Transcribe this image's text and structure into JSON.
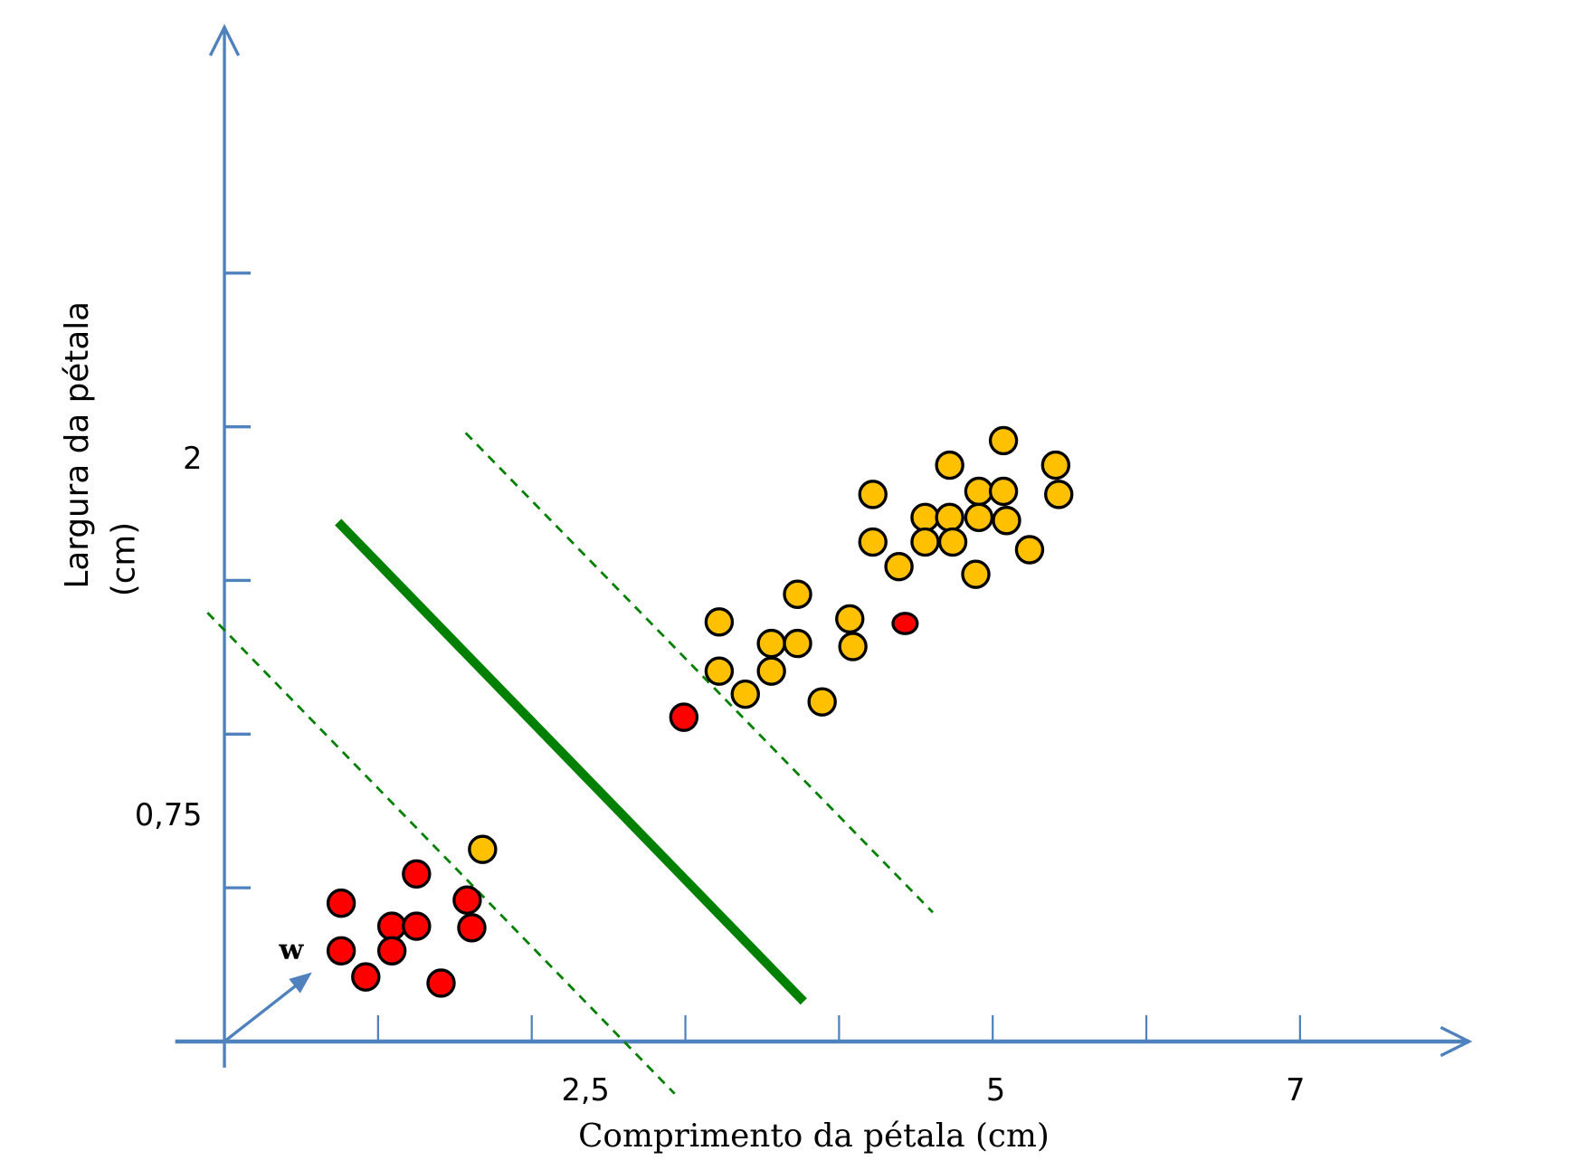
{
  "chart_data": {
    "type": "scatter",
    "title": "",
    "xlabel": "Comprimento da pétala (cm)",
    "ylabel_lines": [
      "Largura da pétala",
      "(cm)"
    ],
    "x_tick_labels": [
      {
        "label": "2,5",
        "at": 2.35
      },
      {
        "label": "5",
        "at": 5.02
      },
      {
        "label": "7",
        "at": 6.97
      }
    ],
    "y_tick_labels": [
      {
        "label": "2",
        "at": 3.8
      },
      {
        "label": "0,75",
        "at": 1.48
      }
    ],
    "x_ticks": [
      1,
      2,
      3,
      4,
      5,
      6,
      7
    ],
    "y_ticks": [
      1,
      2,
      3,
      4,
      5
    ],
    "xlim": [
      -0.32,
      8.1
    ],
    "ylim": [
      -0.17,
      6.6
    ],
    "grid": false,
    "colors": {
      "axis": "#4f81bd",
      "class_a": "#ff0000",
      "class_b": "#ffc000",
      "boundary": "#008000"
    },
    "series": [
      {
        "name": "class_a",
        "color": "#ff0000",
        "points": [
          [
            0.76,
            0.9
          ],
          [
            1.09,
            0.75
          ],
          [
            1.25,
            0.75
          ],
          [
            1.25,
            1.09
          ],
          [
            1.58,
            0.92
          ],
          [
            1.61,
            0.74
          ],
          [
            0.76,
            0.59
          ],
          [
            1.09,
            0.59
          ],
          [
            0.92,
            0.42
          ],
          [
            1.41,
            0.38
          ],
          [
            2.99,
            2.11
          ],
          [
            4.43,
            2.72
          ]
        ]
      },
      {
        "name": "class_b",
        "color": "#ffc000",
        "points": [
          [
            1.68,
            1.25
          ],
          [
            3.22,
            2.73
          ],
          [
            3.22,
            2.41
          ],
          [
            3.39,
            2.26
          ],
          [
            3.56,
            2.59
          ],
          [
            3.56,
            2.41
          ],
          [
            3.73,
            2.91
          ],
          [
            3.73,
            2.59
          ],
          [
            3.89,
            2.21
          ],
          [
            4.07,
            2.75
          ],
          [
            4.09,
            2.57
          ],
          [
            4.22,
            3.56
          ],
          [
            4.22,
            3.25
          ],
          [
            4.39,
            3.09
          ],
          [
            4.56,
            3.41
          ],
          [
            4.56,
            3.25
          ],
          [
            4.72,
            3.75
          ],
          [
            4.72,
            3.41
          ],
          [
            4.74,
            3.25
          ],
          [
            4.91,
            3.58
          ],
          [
            4.91,
            3.41
          ],
          [
            4.89,
            3.04
          ],
          [
            5.07,
            3.91
          ],
          [
            5.07,
            3.58
          ],
          [
            5.09,
            3.39
          ],
          [
            5.24,
            3.2
          ],
          [
            5.41,
            3.75
          ],
          [
            5.43,
            3.56
          ]
        ]
      }
    ],
    "lines": [
      {
        "name": "decision-boundary",
        "style": "solid",
        "from": [
          0.74,
          3.38
        ],
        "to": [
          3.77,
          0.26
        ]
      },
      {
        "name": "margin-lower",
        "style": "dashed",
        "from": [
          -0.11,
          2.79
        ],
        "to": [
          2.93,
          -0.34
        ]
      },
      {
        "name": "margin-upper",
        "style": "dashed",
        "from": [
          1.57,
          3.96
        ],
        "to": [
          4.61,
          0.84
        ]
      }
    ],
    "vector": {
      "label": "w",
      "from": [
        0,
        0
      ],
      "to": [
        0.57,
        0.45
      ]
    }
  }
}
